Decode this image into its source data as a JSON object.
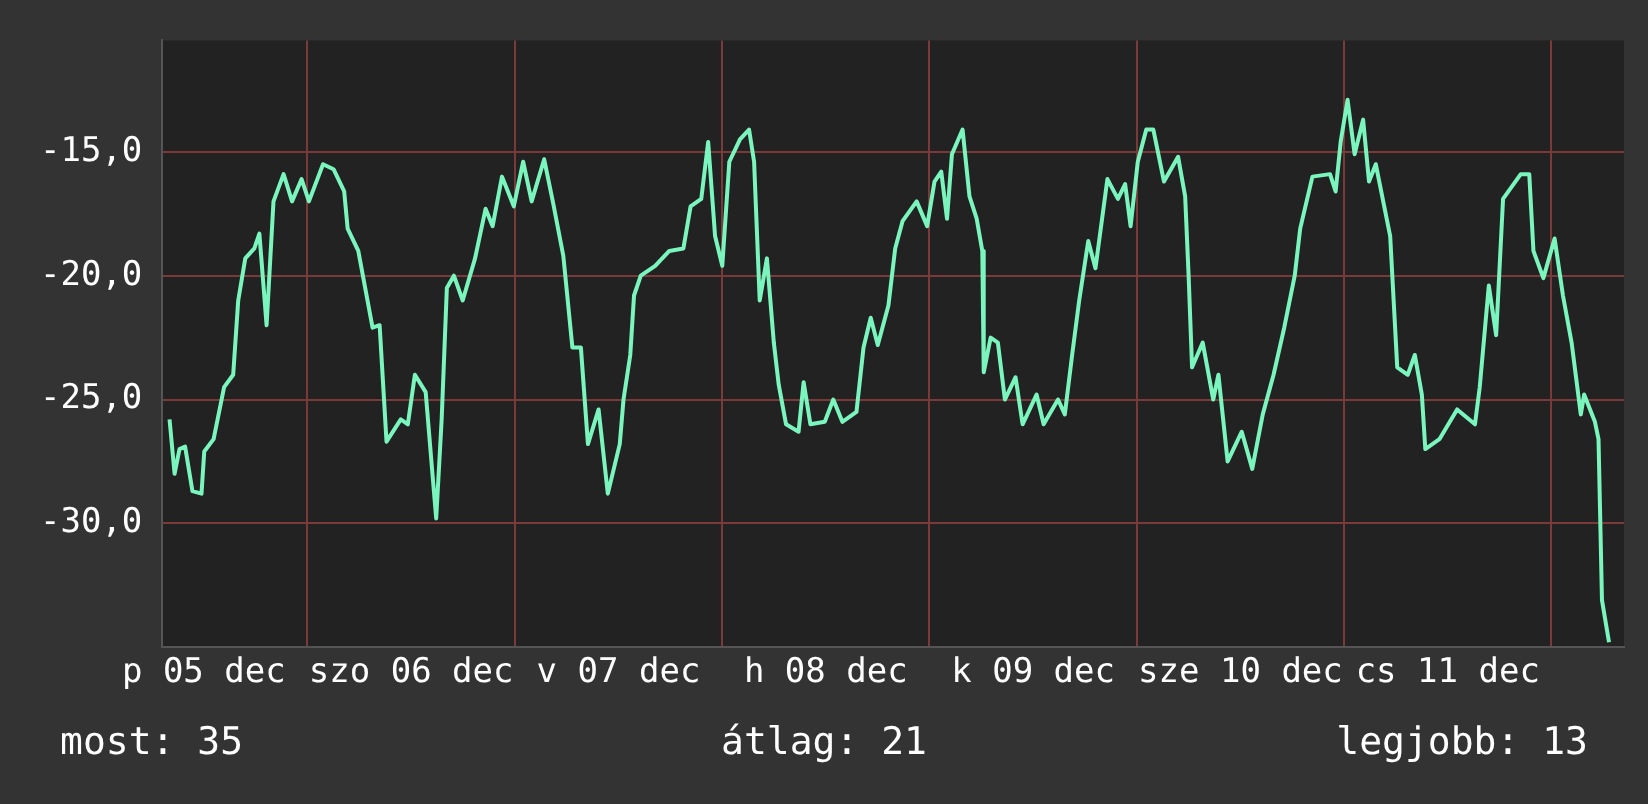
{
  "chart_data": {
    "type": "line",
    "xlim": [
      "--12-05T07:12",
      "--12-12T08:24"
    ],
    "ylim": [
      -35,
      -10.5
    ],
    "xticks": [
      {
        "value": "--12-05T12:00",
        "label": "p 05 dec"
      },
      {
        "value": "--12-06T00:00",
        "label": null
      },
      {
        "value": "--12-06T12:00",
        "label": "szo 06 dec"
      },
      {
        "value": "--12-07T00:00",
        "label": null
      },
      {
        "value": "--12-07T12:00",
        "label": "v 07 dec"
      },
      {
        "value": "--12-08T00:00",
        "label": null
      },
      {
        "value": "--12-08T12:00",
        "label": "h 08 dec"
      },
      {
        "value": "--12-09T00:00",
        "label": null
      },
      {
        "value": "--12-09T12:00",
        "label": "k 09 dec"
      },
      {
        "value": "--12-10T00:00",
        "label": null
      },
      {
        "value": "--12-10T12:00",
        "label": "sze 10 dec"
      },
      {
        "value": "--12-11T00:00",
        "label": null
      },
      {
        "value": "--12-11T12:00",
        "label": "cs 11 dec"
      },
      {
        "value": "--12-12T00:00",
        "label": null
      }
    ],
    "yticks": [
      {
        "value": -15,
        "label": "-15,0"
      },
      {
        "value": -20,
        "label": "-20,0"
      },
      {
        "value": -25,
        "label": "-25,0"
      },
      {
        "value": -30,
        "label": "-30,0"
      }
    ],
    "grid": true,
    "legend": false,
    "marker": "none",
    "line_style": "solid",
    "annotations": [
      "most: 35",
      "átlag: 21",
      "legjobb: 13"
    ],
    "series": [
      {
        "color": "#7af5bd",
        "x": [
          "--12-05T08:02",
          "--12-05T08:37",
          "--12-05T09:11",
          "--12-05T09:50",
          "--12-05T10:41",
          "--12-05T11:44",
          "--12-05T12:03",
          "--12-05T13:08",
          "--12-05T14:21",
          "--12-05T15:24",
          "--12-05T15:59",
          "--12-05T16:48",
          "--12-05T17:51",
          "--12-05T18:26",
          "--12-05T19:16",
          "--12-05T20:04",
          "--12-05T21:14",
          "--12-05T22:13",
          "--12-05T23:19",
          "--12-06T00:10",
          "--12-06T01:48",
          "--12-06T03:01",
          "--12-06T04:15",
          "--12-06T04:39",
          "--12-06T05:53",
          "--12-06T07:32",
          "--12-06T08:21",
          "--12-06T09:09",
          "--12-06T10:48",
          "--12-06T11:37",
          "--12-06T12:26",
          "--12-06T13:41",
          "--12-06T14:28",
          "--12-06T14:54",
          "--12-06T15:32",
          "--12-06T16:08",
          "--12-06T16:57",
          "--12-06T17:58",
          "--12-06T19:24",
          "--12-06T20:37",
          "--12-06T21:26",
          "--12-06T22:31",
          "--12-06T23:53",
          "--12-07T00:58",
          "--12-07T01:57",
          "--12-07T03:24",
          "--12-07T04:24",
          "--12-07T05:37",
          "--12-07T06:40",
          "--12-07T07:39",
          "--12-07T08:28",
          "--12-07T09:42",
          "--12-07T10:46",
          "--12-07T12:09",
          "--12-07T12:35",
          "--12-07T13:22",
          "--12-07T13:48",
          "--12-07T14:35",
          "--12-07T16:15",
          "--12-07T17:53",
          "--12-07T19:31",
          "--12-07T20:21",
          "--12-07T21:35",
          "--12-07T22:23",
          "--12-07T23:11",
          "--12-08T00:01",
          "--12-08T00:50",
          "--12-08T02:04",
          "--12-08T03:07",
          "--12-08T03:42",
          "--12-08T04:21",
          "--12-08T05:11",
          "--12-08T05:59",
          "--12-08T06:33",
          "--12-08T07:24",
          "--12-08T08:51",
          "--12-08T09:26",
          "--12-08T10:13",
          "--12-08T11:53",
          "--12-08T12:52",
          "--12-08T13:55",
          "--12-08T15:33",
          "--12-08T16:22",
          "--12-08T17:12",
          "--12-08T18:01",
          "--12-08T19:15",
          "--12-08T20:02",
          "--12-08T20:53",
          "--12-08T22:31",
          "--12-08T23:44",
          "--12-09T00:35",
          "--12-09T01:22",
          "--12-09T02:02",
          "--12-09T02:36",
          "--12-09T03:50",
          "--12-09T04:38",
          "--12-09T05:28",
          "--12-09T06:07",
          "--12-09T06:17",
          "--12-09T07:05",
          "--12-09T07:55",
          "--12-09T08:44",
          "--12-09T09:58",
          "--12-09T10:47",
          "--12-09T12:24",
          "--12-09T13:13",
          "--12-09T14:53",
          "--12-09T15:40",
          "--12-09T16:31",
          "--12-09T17:20",
          "--12-09T18:23",
          "--12-09T19:13",
          "--12-09T20:36",
          "--12-09T21:49",
          "--12-09T22:39",
          "--12-09T23:17",
          "--12-10T00:07",
          "--12-10T01:06",
          "--12-10T01:55",
          "--12-10T03:09",
          "--12-10T04:47",
          "--12-10T05:36",
          "--12-10T06:00",
          "--12-10T06:24",
          "--12-10T07:38",
          "--12-10T08:51",
          "--12-10T09:27",
          "--12-10T10:31",
          "--12-10T12:09",
          "--12-10T13:22",
          "--12-10T14:35",
          "--12-10T15:50",
          "--12-10T17:04",
          "--12-10T18:17",
          "--12-10T18:55",
          "--12-10T20:20",
          "--12-10T22:22",
          "--12-10T23:01",
          "--12-10T23:36",
          "--12-11T00:24",
          "--12-11T01:13",
          "--12-11T02:12",
          "--12-11T02:53",
          "--12-11T03:40",
          "--12-11T05:20",
          "--12-11T06:09",
          "--12-11T07:22",
          "--12-11T08:11",
          "--12-11T09:00",
          "--12-11T09:24",
          "--12-11T11:02",
          "--12-11T13:05",
          "--12-11T15:09",
          "--12-11T15:42",
          "--12-11T16:45",
          "--12-11T17:36",
          "--12-11T18:24",
          "--12-11T20:27",
          "--12-11T21:26",
          "--12-11T21:55",
          "--12-11T23:04",
          "--12-12T00:22",
          "--12-12T01:20",
          "--12-12T02:20",
          "--12-12T03:24",
          "--12-12T03:47",
          "--12-12T05:02",
          "--12-12T05:27",
          "--12-12T05:51",
          "--12-12T06:40"
        ],
        "values": [
          -25.8,
          -28.0,
          -27.0,
          -26.9,
          -28.7,
          -28.8,
          -27.1,
          -26.6,
          -24.5,
          -24.0,
          -21.0,
          -19.3,
          -18.9,
          -18.3,
          -22.0,
          -17.0,
          -15.9,
          -17.0,
          -16.1,
          -17.0,
          -15.5,
          -15.7,
          -16.6,
          -18.1,
          -19.0,
          -22.1,
          -22.0,
          -26.7,
          -25.8,
          -26.0,
          -24.0,
          -24.7,
          -28.0,
          -29.8,
          -25.8,
          -20.5,
          -20.0,
          -21.0,
          -19.3,
          -17.3,
          -18.0,
          -16.0,
          -17.2,
          -15.4,
          -17.0,
          -15.3,
          -17.0,
          -19.2,
          -22.9,
          -22.9,
          -26.8,
          -25.4,
          -28.8,
          -26.8,
          -25.0,
          -23.2,
          -20.8,
          -20.0,
          -19.6,
          -19.0,
          -18.9,
          -17.2,
          -16.9,
          -14.6,
          -18.4,
          -19.6,
          -15.4,
          -14.5,
          -14.1,
          -15.4,
          -21.0,
          -19.3,
          -22.7,
          -24.4,
          -26.0,
          -26.3,
          -24.3,
          -26.0,
          -25.9,
          -25.0,
          -25.9,
          -25.5,
          -22.9,
          -21.7,
          -22.8,
          -21.2,
          -18.9,
          -17.8,
          -17.0,
          -18.0,
          -16.2,
          -15.8,
          -17.7,
          -15.1,
          -14.1,
          -16.8,
          -17.7,
          -19.0,
          -23.9,
          -22.5,
          -22.7,
          -25.0,
          -24.1,
          -26.0,
          -24.8,
          -26.0,
          -25.0,
          -25.6,
          -23.2,
          -21.0,
          -18.6,
          -19.7,
          -16.1,
          -16.9,
          -16.3,
          -18.0,
          -15.4,
          -14.1,
          -14.1,
          -16.2,
          -15.2,
          -16.8,
          -20.0,
          -23.7,
          -22.7,
          -25.0,
          -24.0,
          -27.5,
          -26.3,
          -27.8,
          -25.6,
          -24.0,
          -22.1,
          -20.0,
          -18.1,
          -16.0,
          -15.9,
          -16.6,
          -14.6,
          -12.9,
          -15.1,
          -13.7,
          -16.2,
          -15.5,
          -18.4,
          -23.7,
          -24.0,
          -23.2,
          -24.8,
          -27.0,
          -26.6,
          -25.4,
          -26.0,
          -24.5,
          -20.4,
          -22.4,
          -16.9,
          -15.9,
          -15.9,
          -19.0,
          -20.1,
          -18.5,
          -20.8,
          -22.7,
          -25.6,
          -24.8,
          -25.9,
          -26.6,
          -33.1,
          -34.8
        ]
      }
    ]
  }
}
